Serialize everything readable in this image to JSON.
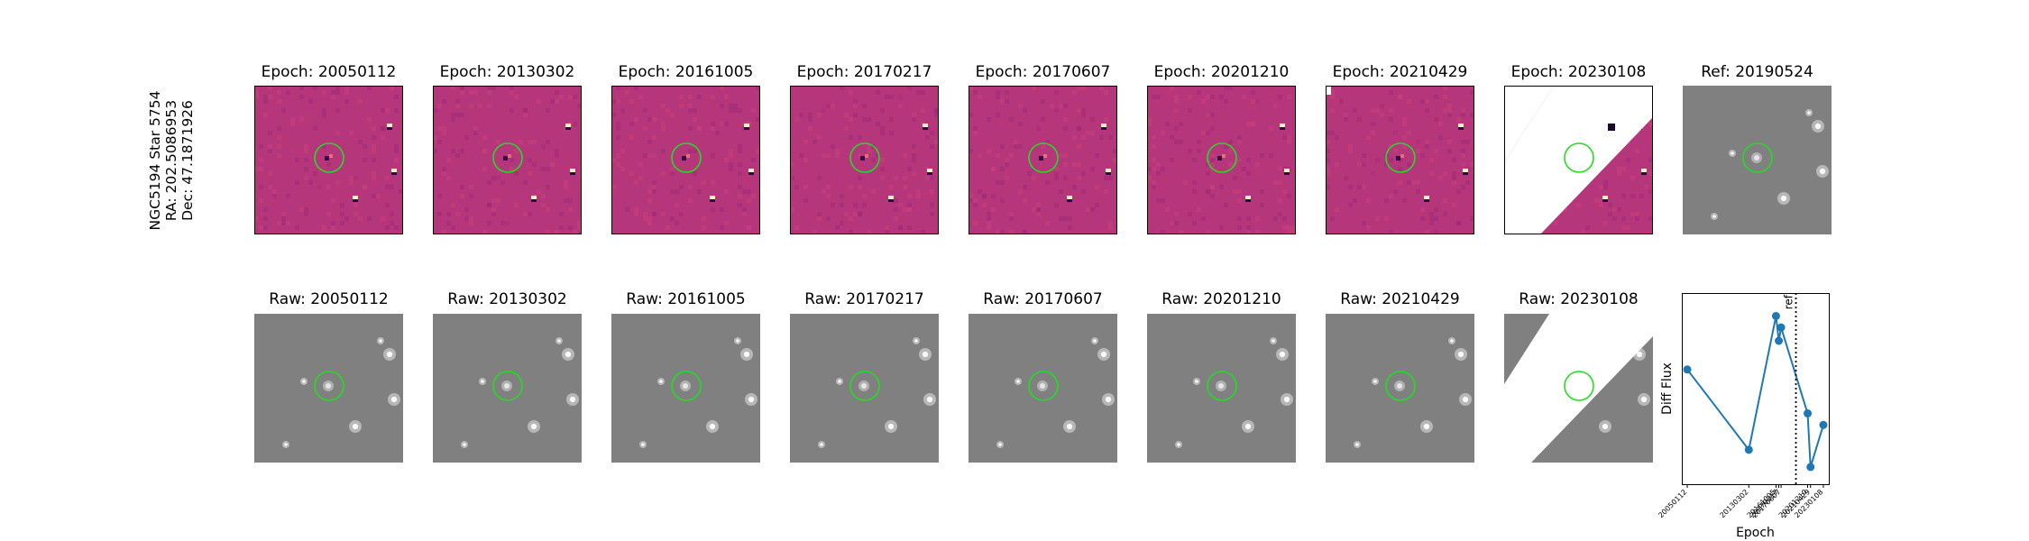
{
  "row_label": {
    "line1": "NGC5194 Star 5754",
    "line2": "RA: 202.5086953",
    "line3": "Dec: 47.1871926"
  },
  "diff_panels": [
    {
      "title": "Epoch: 20050112"
    },
    {
      "title": "Epoch: 20130302"
    },
    {
      "title": "Epoch: 20161005"
    },
    {
      "title": "Epoch: 20170217"
    },
    {
      "title": "Epoch: 20170607"
    },
    {
      "title": "Epoch: 20201210"
    },
    {
      "title": "Epoch: 20210429"
    },
    {
      "title": "Epoch: 20230108"
    }
  ],
  "ref_panel": {
    "title": "Ref: 20190524"
  },
  "raw_panels": [
    {
      "title": "Raw: 20050112"
    },
    {
      "title": "Raw: 20130302"
    },
    {
      "title": "Raw: 20161005"
    },
    {
      "title": "Raw: 20170217"
    },
    {
      "title": "Raw: 20170607"
    },
    {
      "title": "Raw: 20201210"
    },
    {
      "title": "Raw: 20210429"
    },
    {
      "title": "Raw: 20230108"
    }
  ],
  "colors": {
    "diff_bg": "#b5367a",
    "raw_bg": "#808080",
    "circle": "#22dd22",
    "line": "#1f77b4",
    "ref_line": "#000000"
  },
  "chart_data": {
    "type": "line",
    "title": "",
    "xlabel": "Epoch",
    "ylabel": "Diff Flux",
    "categories": [
      "20050112",
      "20130302",
      "20161005",
      "20170217",
      "20170607",
      "20201210",
      "20210429",
      "20230108"
    ],
    "x": [
      "2005-01-12",
      "2013-03-02",
      "2016-10-05",
      "2017-02-17",
      "2017-06-07",
      "2020-12-10",
      "2021-04-29",
      "2023-01-08"
    ],
    "values": [
      0.6,
      0.18,
      0.88,
      0.75,
      0.82,
      0.37,
      0.09,
      0.31
    ],
    "ref_line": {
      "label": "ref",
      "x": "2019-05-24",
      "style": "dotted"
    },
    "y_ticks_shown": false,
    "grid": false
  }
}
